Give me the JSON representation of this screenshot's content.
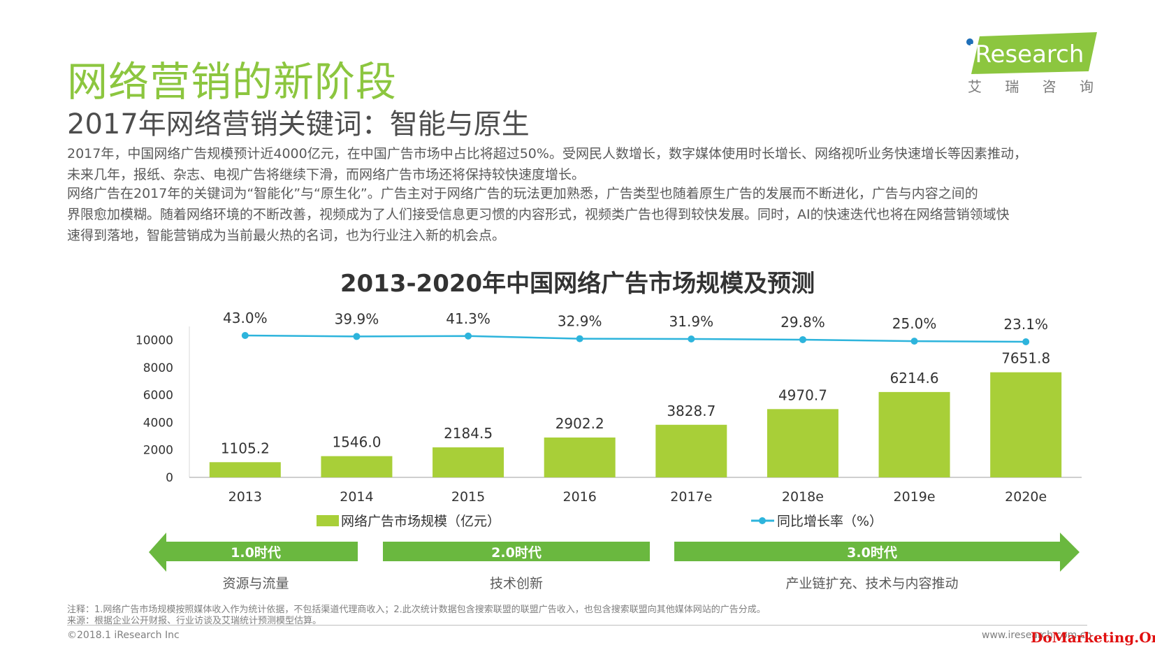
{
  "header": {
    "title": "网络营销的新阶段",
    "subtitle": "2017年网络营销关键词：智能与原生"
  },
  "logo": {
    "brand": "iResearch",
    "brand_cn": [
      "艾",
      "瑞",
      "咨",
      "询"
    ]
  },
  "body": {
    "p1_l1": "2017年，中国网络广告规模预计近4000亿元，在中国广告市场中占比将超过50%。受网民人数增长，数字媒体使用时长增长、网络视听业务快速增长等因素推动，",
    "p1_l2": "未来几年，报纸、杂志、电视广告将继续下滑，而网络广告市场还将保持较快速度增长。",
    "p2_l1": "网络广告在2017年的关键词为“智能化”与“原生化”。广告主对于网络广告的玩法更加熟悉，广告类型也随着原生广告的发展而不断进化，广告与内容之间的",
    "p2_l2": "界限愈加模糊。随着网络环境的不断改善，视频成为了人们接受信息更习惯的内容形式，视频类广告也得到较快发展。同时，AI的快速迭代也将在网络营销领域快",
    "p2_l3": "速得到落地，智能营销成为当前最火热的名词，也为行业注入新的机会点。"
  },
  "chart_data": {
    "type": "bar",
    "title": "2013-2020年中国网络广告市场规模及预测",
    "categories": [
      "2013",
      "2014",
      "2015",
      "2016",
      "2017e",
      "2018e",
      "2019e",
      "2020e"
    ],
    "series": [
      {
        "name": "网络广告市场规模（亿元）",
        "type": "bar",
        "values": [
          1105.2,
          1546.0,
          2184.5,
          2902.2,
          3828.7,
          4970.7,
          6214.6,
          7651.8
        ],
        "labels": [
          "1105.2",
          "1546.0",
          "2184.5",
          "2902.2",
          "3828.7",
          "4970.7",
          "6214.6",
          "7651.8"
        ],
        "color": "#a8cf38"
      },
      {
        "name": "同比增长率（%）",
        "type": "line",
        "values": [
          43.0,
          39.9,
          41.3,
          32.9,
          31.9,
          29.8,
          25.0,
          23.1
        ],
        "labels": [
          "43.0%",
          "39.9%",
          "41.3%",
          "32.9%",
          "31.9%",
          "29.8%",
          "25.0%",
          "23.1%"
        ],
        "color": "#2db4dc"
      }
    ],
    "y_ticks": [
      "10000",
      "8000",
      "6000",
      "4000",
      "2000",
      "0"
    ],
    "ylim": [
      0,
      11000
    ],
    "legend_position": "bottom"
  },
  "eras": [
    {
      "label": "1.0时代",
      "desc": "资源与流量"
    },
    {
      "label": "2.0时代",
      "desc": "技术创新"
    },
    {
      "label": "3.0时代",
      "desc": "产业链扩充、技术与内容推动"
    }
  ],
  "notes": {
    "note": "注释：1.网络广告市场规模按照媒体收入作为统计依据，不包括渠道代理商收入；2.此次统计数据包含搜索联盟的联盟广告收入，也包含搜索联盟向其他媒体网站的广告分成。",
    "source": "来源：根据企业公开财报、行业访谈及艾瑞统计预测模型估算。"
  },
  "footer": {
    "copyright": "©2018.1 iResearch Inc",
    "website": "www.iresearch.com.cn",
    "watermark": "DoMarketing.Org"
  },
  "colors": {
    "title_green": "#8cc63f",
    "bar_green": "#a8cf38",
    "line_blue": "#2db4dc",
    "arrow_green": "#6ab83f"
  }
}
